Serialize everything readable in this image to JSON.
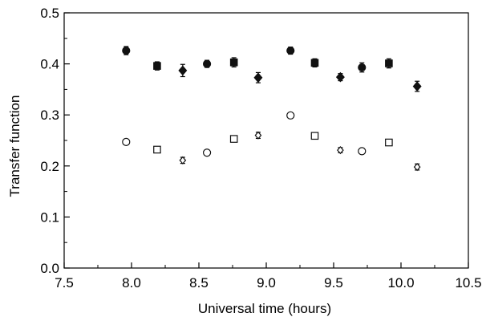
{
  "chart_data": {
    "type": "scatter",
    "title": "",
    "xlabel": "Universal time (hours)",
    "ylabel": "Transfer function",
    "xlim": [
      7.5,
      10.5
    ],
    "ylim": [
      0.0,
      0.5
    ],
    "xticks": [
      "7.5",
      "8.0",
      "8.5",
      "9.0",
      "9.5",
      "10.0",
      "10.5"
    ],
    "yticks": [
      "0.0",
      "0.1",
      "0.2",
      "0.3",
      "0.4",
      "0.5"
    ],
    "grid": false,
    "legend": "none",
    "series": [
      {
        "points": [
          {
            "x": 7.96,
            "y": 0.426,
            "err": 0.008,
            "marker": "circle",
            "filled": true
          },
          {
            "x": 8.19,
            "y": 0.396,
            "err": 0.008,
            "marker": "square",
            "filled": true
          },
          {
            "x": 8.38,
            "y": 0.387,
            "err": 0.012,
            "marker": "diamond",
            "filled": true
          },
          {
            "x": 8.56,
            "y": 0.4,
            "err": 0.007,
            "marker": "circle",
            "filled": true
          },
          {
            "x": 8.76,
            "y": 0.403,
            "err": 0.009,
            "marker": "square",
            "filled": true
          },
          {
            "x": 8.94,
            "y": 0.373,
            "err": 0.01,
            "marker": "diamond",
            "filled": true
          },
          {
            "x": 9.18,
            "y": 0.426,
            "err": 0.007,
            "marker": "circle",
            "filled": true
          },
          {
            "x": 9.36,
            "y": 0.402,
            "err": 0.008,
            "marker": "square",
            "filled": true
          },
          {
            "x": 9.55,
            "y": 0.374,
            "err": 0.007,
            "marker": "diamond",
            "filled": true
          },
          {
            "x": 9.71,
            "y": 0.393,
            "err": 0.009,
            "marker": "circle",
            "filled": true
          },
          {
            "x": 9.91,
            "y": 0.401,
            "err": 0.009,
            "marker": "square",
            "filled": true
          },
          {
            "x": 10.12,
            "y": 0.356,
            "err": 0.01,
            "marker": "diamond",
            "filled": true
          }
        ]
      },
      {
        "points": [
          {
            "x": 7.96,
            "y": 0.247,
            "err": 0.0,
            "marker": "circle",
            "filled": false
          },
          {
            "x": 8.19,
            "y": 0.232,
            "err": 0.0,
            "marker": "square",
            "filled": false
          },
          {
            "x": 8.38,
            "y": 0.211,
            "err": 0.006,
            "marker": "diamond",
            "filled": false
          },
          {
            "x": 8.56,
            "y": 0.226,
            "err": 0.0,
            "marker": "circle",
            "filled": false
          },
          {
            "x": 8.76,
            "y": 0.253,
            "err": 0.0,
            "marker": "square",
            "filled": false
          },
          {
            "x": 8.94,
            "y": 0.26,
            "err": 0.006,
            "marker": "diamond",
            "filled": false
          },
          {
            "x": 9.18,
            "y": 0.299,
            "err": 0.0,
            "marker": "circle",
            "filled": false
          },
          {
            "x": 9.36,
            "y": 0.259,
            "err": 0.0,
            "marker": "square",
            "filled": false
          },
          {
            "x": 9.55,
            "y": 0.231,
            "err": 0.005,
            "marker": "diamond",
            "filled": false
          },
          {
            "x": 9.71,
            "y": 0.229,
            "err": 0.0,
            "marker": "circle",
            "filled": false
          },
          {
            "x": 9.91,
            "y": 0.246,
            "err": 0.0,
            "marker": "square",
            "filled": false
          },
          {
            "x": 10.12,
            "y": 0.198,
            "err": 0.006,
            "marker": "diamond",
            "filled": false
          }
        ]
      }
    ]
  }
}
